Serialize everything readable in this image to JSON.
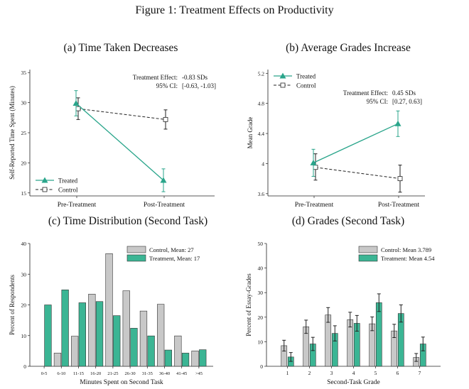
{
  "figure_title": "Figure 1: Treatment Effects on Productivity",
  "colors": {
    "treated": "#2aa58b",
    "control": "#222222",
    "control_bar": "#c8c8c8",
    "treated_bar": "#3bb594"
  },
  "chart_data": [
    {
      "id": "a",
      "type": "line",
      "title": "(a) Time Taken Decreases",
      "ylabel": "Self-Reported Time Spent (Minutes)",
      "xlabel": "",
      "categories": [
        "Pre-Treatment",
        "Post-Treatment"
      ],
      "ylim": [
        14.5,
        35.5
      ],
      "yticks": [
        15,
        20,
        25,
        30,
        35
      ],
      "ytick_labels": [
        "15",
        "20",
        "25",
        "30",
        "35"
      ],
      "series": [
        {
          "name": "Treated",
          "style": "treated",
          "values": [
            29.9,
            17.1
          ],
          "ci_low": [
            27.8,
            15.2
          ],
          "ci_high": [
            32.0,
            19.0
          ]
        },
        {
          "name": "Control",
          "style": "control",
          "values": [
            29.0,
            27.2
          ],
          "ci_low": [
            27.2,
            25.6
          ],
          "ci_high": [
            30.8,
            28.8
          ]
        }
      ],
      "legend": "bottom-left",
      "annotation": {
        "line1_label": "Treatment Effect:",
        "line1_value": "-0.83 SDs",
        "line2_label": "95% CI:",
        "line2_value": "[-0.63, -1.03]"
      }
    },
    {
      "id": "b",
      "type": "line",
      "title": "(b) Average Grades Increase",
      "ylabel": "Mean Grade",
      "xlabel": "",
      "categories": [
        "Pre-Treatment",
        "Post-Treatment"
      ],
      "ylim": [
        3.57,
        5.25
      ],
      "yticks": [
        3.6,
        4.0,
        4.4,
        4.8,
        5.2
      ],
      "ytick_labels": [
        "3.6",
        "4",
        "4.4",
        "4.8",
        "5.2"
      ],
      "series": [
        {
          "name": "Treated",
          "style": "treated",
          "values": [
            4.01,
            4.53
          ],
          "ci_low": [
            3.83,
            4.36
          ],
          "ci_high": [
            4.19,
            4.7
          ]
        },
        {
          "name": "Control",
          "style": "control",
          "values": [
            3.95,
            3.8
          ],
          "ci_low": [
            3.78,
            3.62
          ],
          "ci_high": [
            4.13,
            3.98
          ]
        }
      ],
      "legend": "top-left",
      "annotation": {
        "line1_label": "Treatment Effect:",
        "line1_value": "0.45 SDs",
        "line2_label": "95% CI:",
        "line2_value": "[0.27, 0.63]"
      }
    },
    {
      "id": "c",
      "type": "bar",
      "title": "(c) Time Distribution (Second Task)",
      "ylabel": "Percent of Respondents",
      "xlabel": "Minutes Spent on Second Task",
      "categories": [
        "0-5",
        "6-10",
        "11-15",
        "16-20",
        "21-25",
        "26-30",
        "31-35",
        "36-40",
        "41-45",
        ">45"
      ],
      "ylim": [
        0,
        40
      ],
      "yticks": [
        0,
        10,
        20,
        30,
        40
      ],
      "series": [
        {
          "name": "Control, Mean: 27",
          "style": "control",
          "values": [
            0,
            4.3,
            9.8,
            23.5,
            36.7,
            24.6,
            18.0,
            20.2,
            9.9,
            5.0
          ]
        },
        {
          "name": "Treatment, Mean: 17",
          "style": "treated",
          "values": [
            20.0,
            24.9,
            20.7,
            21.1,
            16.5,
            12.4,
            9.9,
            5.3,
            4.3,
            5.4
          ]
        }
      ],
      "legend": "top-right"
    },
    {
      "id": "d",
      "type": "bar",
      "title": "(d) Grades (Second Task)",
      "ylabel": "Percent of Essay-Grades",
      "xlabel": "Second-Task Grade",
      "categories": [
        "1",
        "2",
        "3",
        "4",
        "5",
        "6",
        "7"
      ],
      "ylim": [
        0,
        50
      ],
      "yticks": [
        0,
        10,
        20,
        30,
        40,
        50
      ],
      "series": [
        {
          "name": "Control: Mean 3.789",
          "style": "control",
          "values": [
            8.4,
            16.1,
            20.9,
            19.0,
            17.3,
            14.4,
            3.6
          ],
          "ci_low": [
            6.2,
            13.4,
            17.9,
            16.0,
            14.5,
            11.7,
            2.0
          ],
          "ci_high": [
            10.6,
            18.8,
            23.9,
            22.0,
            20.1,
            17.1,
            5.2
          ]
        },
        {
          "name": "Treatment: Mean 4.54",
          "style": "treated",
          "values": [
            3.8,
            9.1,
            13.4,
            17.5,
            25.9,
            21.5,
            9.1
          ],
          "ci_low": [
            2.0,
            6.4,
            10.3,
            14.3,
            22.3,
            18.0,
            6.3
          ],
          "ci_high": [
            5.6,
            11.8,
            16.5,
            20.7,
            29.5,
            25.0,
            11.9
          ]
        }
      ],
      "legend": "top-right"
    }
  ]
}
